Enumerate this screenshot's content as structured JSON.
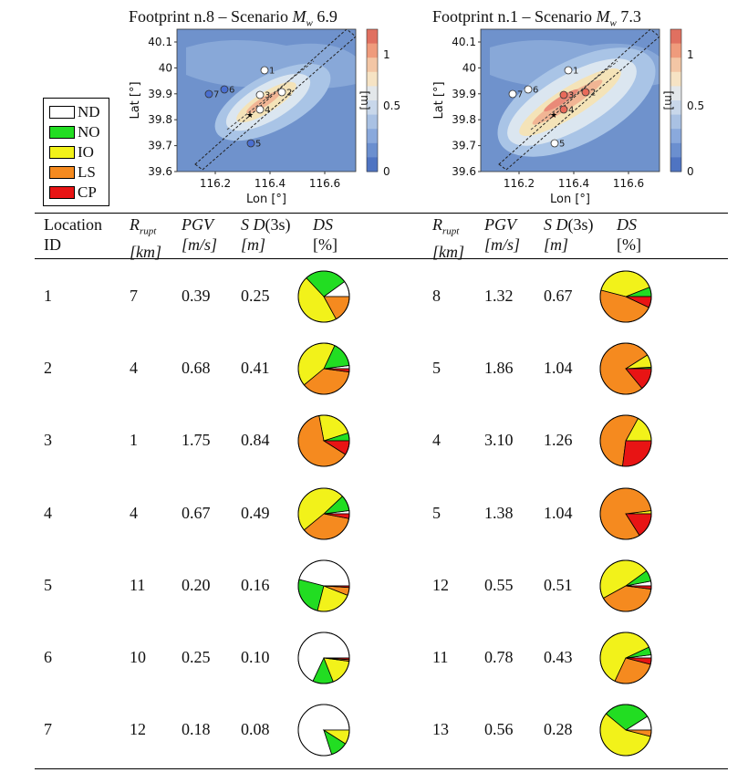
{
  "legend": [
    {
      "label": "ND",
      "color": "#ffffff"
    },
    {
      "label": "NO",
      "color": "#22dd22"
    },
    {
      "label": "IO",
      "color": "#f2f21a"
    },
    {
      "label": "LS",
      "color": "#f58a1f"
    },
    {
      "label": "CP",
      "color": "#e81414"
    }
  ],
  "maps": [
    {
      "title_prefix": "Footprint n.8 – Scenario ",
      "title_var": "M",
      "title_sub": "w",
      "title_value": " 6.9",
      "ylabel": "Lat [°]",
      "xlabel": "Lon [°]",
      "yticks": [
        "40.1",
        "40",
        "39.9",
        "39.8",
        "39.7",
        "39.6"
      ],
      "xticks": [
        "116.2",
        "116.4",
        "116.6"
      ],
      "colorbar_ticks": [
        "0",
        "0.5",
        "1"
      ],
      "colorbar_unit": "[m]",
      "locations": [
        {
          "id": "1",
          "label": "1",
          "fill": "#ffffff"
        },
        {
          "id": "2",
          "label": "2",
          "fill": "#ffffff"
        },
        {
          "id": "3",
          "label": "3",
          "fill": "#ffffff"
        },
        {
          "id": "4",
          "label": "4",
          "fill": "#ffffff"
        },
        {
          "id": "5",
          "label": "5",
          "fill": "#4a6fd0"
        },
        {
          "id": "6",
          "label": "6",
          "fill": "#4a6fd0"
        },
        {
          "id": "7",
          "label": "7",
          "fill": "#4a6fd0"
        }
      ]
    },
    {
      "title_prefix": "Footprint n.1 – Scenario ",
      "title_var": "M",
      "title_sub": "w",
      "title_value": " 7.3",
      "ylabel": "Lat [°]",
      "xlabel": "Lon [°]",
      "yticks": [
        "40.1",
        "40",
        "39.9",
        "39.8",
        "39.7",
        "39.6"
      ],
      "xticks": [
        "116.2",
        "116.4",
        "116.6"
      ],
      "colorbar_ticks": [
        "0",
        "0.5",
        "1"
      ],
      "colorbar_unit": "[m]",
      "locations": [
        {
          "id": "1",
          "label": "1",
          "fill": "#ffffff"
        },
        {
          "id": "2",
          "label": "2",
          "fill": "#e86a5a"
        },
        {
          "id": "3",
          "label": "3",
          "fill": "#e86a5a"
        },
        {
          "id": "4",
          "label": "4",
          "fill": "#e86a5a"
        },
        {
          "id": "5",
          "label": "5",
          "fill": "#ffffff"
        },
        {
          "id": "6",
          "label": "6",
          "fill": "#ffffff"
        },
        {
          "id": "7",
          "label": "7",
          "fill": "#ffffff"
        }
      ]
    }
  ],
  "table": {
    "headers": {
      "loc_line1": "Location",
      "loc_line2": "ID",
      "rrupt_main": "R",
      "rrupt_sub": "rupt",
      "rrupt_unit": "[km]",
      "pgv": "PGV",
      "pgv_unit": "[m/s]",
      "sd_var": "S D",
      "sd_arg": "(3s)",
      "sd_unit": "[m]",
      "ds": "DS",
      "ds_unit": "[%]"
    },
    "rows": [
      {
        "id": "1",
        "left": {
          "r": "7",
          "pgv": "0.39",
          "sd": "0.25"
        },
        "right": {
          "r": "8",
          "pgv": "1.32",
          "sd": "0.67"
        }
      },
      {
        "id": "2",
        "left": {
          "r": "4",
          "pgv": "0.68",
          "sd": "0.41"
        },
        "right": {
          "r": "5",
          "pgv": "1.86",
          "sd": "1.04"
        }
      },
      {
        "id": "3",
        "left": {
          "r": "1",
          "pgv": "1.75",
          "sd": "0.84"
        },
        "right": {
          "r": "4",
          "pgv": "3.10",
          "sd": "1.26"
        }
      },
      {
        "id": "4",
        "left": {
          "r": "4",
          "pgv": "0.67",
          "sd": "0.49"
        },
        "right": {
          "r": "5",
          "pgv": "1.38",
          "sd": "1.04"
        }
      },
      {
        "id": "5",
        "left": {
          "r": "11",
          "pgv": "0.20",
          "sd": "0.16"
        },
        "right": {
          "r": "12",
          "pgv": "0.55",
          "sd": "0.51"
        }
      },
      {
        "id": "6",
        "left": {
          "r": "10",
          "pgv": "0.25",
          "sd": "0.10"
        },
        "right": {
          "r": "11",
          "pgv": "0.78",
          "sd": "0.43"
        }
      },
      {
        "id": "7",
        "left": {
          "r": "12",
          "pgv": "0.18",
          "sd": "0.08"
        },
        "right": {
          "r": "13",
          "pgv": "0.56",
          "sd": "0.28"
        }
      }
    ]
  },
  "chart_data": {
    "type": "pie",
    "categories": [
      "ND",
      "NO",
      "IO",
      "LS",
      "CP"
    ],
    "colors": [
      "#ffffff",
      "#22dd22",
      "#f2f21a",
      "#f58a1f",
      "#e81414"
    ],
    "pies": [
      {
        "scenario": "left",
        "location": "1",
        "values": [
          10,
          27,
          46,
          17,
          0
        ]
      },
      {
        "scenario": "left",
        "location": "2",
        "values": [
          2,
          16,
          43,
          37,
          2
        ]
      },
      {
        "scenario": "left",
        "location": "3",
        "values": [
          0,
          5,
          23,
          63,
          9
        ]
      },
      {
        "scenario": "left",
        "location": "4",
        "values": [
          2,
          10,
          49,
          36,
          3
        ]
      },
      {
        "scenario": "left",
        "location": "5",
        "values": [
          46,
          25,
          23,
          5,
          1
        ]
      },
      {
        "scenario": "left",
        "location": "6",
        "values": [
          68,
          13,
          17,
          1,
          1
        ]
      },
      {
        "scenario": "left",
        "location": "7",
        "values": [
          80,
          11,
          9,
          0,
          0
        ]
      },
      {
        "scenario": "right",
        "location": "8",
        "values": [
          0,
          6,
          40,
          47,
          7
        ]
      },
      {
        "scenario": "right",
        "location": "5",
        "values": [
          0,
          1,
          8,
          77,
          14
        ]
      },
      {
        "scenario": "right",
        "location": "4",
        "values": [
          0,
          0,
          17,
          56,
          27
        ]
      },
      {
        "scenario": "right",
        "location": "5",
        "values": [
          0,
          0,
          2,
          82,
          16
        ]
      },
      {
        "scenario": "right",
        "location": "12",
        "values": [
          3,
          7,
          48,
          40,
          2
        ]
      },
      {
        "scenario": "right",
        "location": "11",
        "values": [
          2,
          5,
          61,
          28,
          4
        ]
      },
      {
        "scenario": "right",
        "location": "13",
        "values": [
          9,
          30,
          57,
          4,
          0
        ]
      }
    ]
  }
}
